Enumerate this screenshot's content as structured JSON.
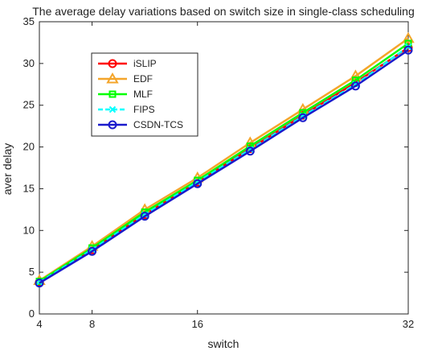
{
  "chart_data": {
    "type": "line",
    "title": "The average delay variations based on switch size in single-class scheduling",
    "xlabel": "switch",
    "ylabel": "aver delay",
    "xlim": [
      4,
      32
    ],
    "ylim": [
      0,
      35
    ],
    "xticks": [
      4,
      8,
      16,
      32
    ],
    "yticks": [
      0,
      5,
      10,
      15,
      20,
      25,
      30,
      35
    ],
    "grid": false,
    "legend_position": "top-left inside",
    "x": [
      4,
      8,
      12,
      16,
      20,
      24,
      28,
      32
    ],
    "series": [
      {
        "name": "iSLIP",
        "color": "#ff0000",
        "marker": "circle",
        "line": "solid",
        "values": [
          3.8,
          7.7,
          11.9,
          15.8,
          19.8,
          23.8,
          27.7,
          31.9
        ]
      },
      {
        "name": "EDF",
        "color": "#f4a52a",
        "marker": "triangle",
        "line": "solid",
        "values": [
          4.0,
          8.1,
          12.5,
          16.3,
          20.5,
          24.5,
          28.5,
          33.0
        ]
      },
      {
        "name": "MLF",
        "color": "#00ff00",
        "marker": "square",
        "line": "solid",
        "values": [
          3.9,
          7.9,
          12.2,
          16.0,
          20.1,
          24.1,
          28.0,
          32.4
        ]
      },
      {
        "name": "FIPS",
        "color": "#00ffff",
        "marker": "x",
        "line": "dashed",
        "values": [
          3.8,
          7.7,
          11.9,
          15.8,
          19.7,
          23.7,
          27.5,
          32.0
        ]
      },
      {
        "name": "CSDN-TCS",
        "color": "#1a1acc",
        "marker": "circle",
        "line": "solid",
        "values": [
          3.7,
          7.5,
          11.7,
          15.6,
          19.5,
          23.5,
          27.3,
          31.6
        ]
      }
    ]
  }
}
